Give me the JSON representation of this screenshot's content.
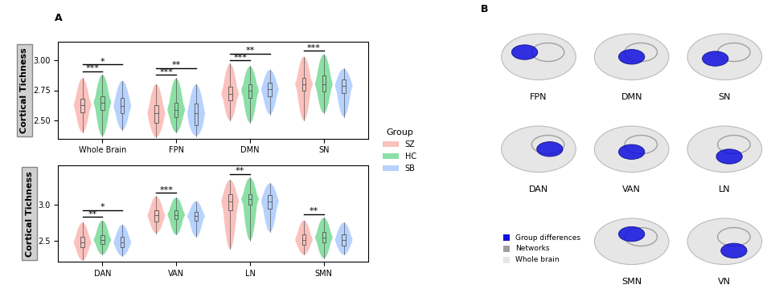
{
  "panel_labels": [
    "A",
    "B"
  ],
  "chart_data": [
    {
      "type": "violin",
      "ylabel": "Cortical Tichness",
      "categories": [
        "Whole Brain",
        "FPN",
        "DMN",
        "SN"
      ],
      "ylim": [
        2.35,
        3.15
      ],
      "yticks": [
        {
          "value": 2.5,
          "label": "2.50"
        },
        {
          "value": 2.75,
          "label": "2.75"
        },
        {
          "value": 3.0,
          "label": "3.00"
        }
      ],
      "grid": false,
      "legend": "center left",
      "legend_title": "Group",
      "series": [
        {
          "name": "SZ",
          "color": "#F8766D",
          "values": [
            {
              "min": 2.4,
              "q1": 2.57,
              "median": 2.63,
              "q3": 2.68,
              "max": 2.85
            },
            {
              "min": 2.36,
              "q1": 2.48,
              "median": 2.56,
              "q3": 2.63,
              "max": 2.8
            },
            {
              "min": 2.5,
              "q1": 2.67,
              "median": 2.72,
              "q3": 2.78,
              "max": 2.97
            },
            {
              "min": 2.5,
              "q1": 2.75,
              "median": 2.8,
              "q3": 2.85,
              "max": 3.03
            }
          ]
        },
        {
          "name": "HC",
          "color": "#00BA38",
          "values": [
            {
              "min": 2.37,
              "q1": 2.59,
              "median": 2.65,
              "q3": 2.7,
              "max": 2.88
            },
            {
              "min": 2.4,
              "q1": 2.53,
              "median": 2.59,
              "q3": 2.65,
              "max": 2.85
            },
            {
              "min": 2.48,
              "q1": 2.69,
              "median": 2.75,
              "q3": 2.8,
              "max": 2.95
            },
            {
              "min": 2.56,
              "q1": 2.74,
              "median": 2.8,
              "q3": 2.87,
              "max": 3.05
            }
          ]
        },
        {
          "name": "SB",
          "color": "#619CFF",
          "values": [
            {
              "min": 2.42,
              "q1": 2.56,
              "median": 2.62,
              "q3": 2.69,
              "max": 2.83
            },
            {
              "min": 2.37,
              "q1": 2.46,
              "median": 2.56,
              "q3": 2.64,
              "max": 2.8
            },
            {
              "min": 2.55,
              "q1": 2.7,
              "median": 2.76,
              "q3": 2.81,
              "max": 2.92
            },
            {
              "min": 2.53,
              "q1": 2.73,
              "median": 2.79,
              "q3": 2.84,
              "max": 2.93
            }
          ]
        }
      ],
      "comparisons": [
        {
          "category": "Whole Brain",
          "groups": [
            "SZ",
            "HC"
          ],
          "label": "***"
        },
        {
          "category": "Whole Brain",
          "groups": [
            "SZ",
            "SB"
          ],
          "label": "*"
        },
        {
          "category": "FPN",
          "groups": [
            "SZ",
            "HC"
          ],
          "label": "***"
        },
        {
          "category": "FPN",
          "groups": [
            "SZ",
            "SB"
          ],
          "label": "**"
        },
        {
          "category": "DMN",
          "groups": [
            "SZ",
            "HC"
          ],
          "label": "***"
        },
        {
          "category": "DMN",
          "groups": [
            "SZ",
            "SB"
          ],
          "label": "**"
        },
        {
          "category": "SN",
          "groups": [
            "SZ",
            "HC"
          ],
          "label": "***"
        }
      ]
    },
    {
      "type": "violin",
      "ylabel": "Cortical Tichness",
      "categories": [
        "DAN",
        "VAN",
        "LN",
        "SMN"
      ],
      "ylim": [
        2.2,
        3.55
      ],
      "yticks": [
        {
          "value": 2.5,
          "label": "2.5"
        },
        {
          "value": 3.0,
          "label": "3.0"
        }
      ],
      "grid": false,
      "series": [
        {
          "name": "SZ",
          "color": "#F8766D",
          "values": [
            {
              "min": 2.22,
              "q1": 2.4,
              "median": 2.47,
              "q3": 2.55,
              "max": 2.75
            },
            {
              "min": 2.6,
              "q1": 2.77,
              "median": 2.85,
              "q3": 2.92,
              "max": 3.12
            },
            {
              "min": 2.38,
              "q1": 2.92,
              "median": 3.05,
              "q3": 3.15,
              "max": 3.35
            },
            {
              "min": 2.3,
              "q1": 2.44,
              "median": 2.51,
              "q3": 2.58,
              "max": 2.78
            }
          ]
        },
        {
          "name": "HC",
          "color": "#00BA38",
          "values": [
            {
              "min": 2.3,
              "q1": 2.45,
              "median": 2.51,
              "q3": 2.57,
              "max": 2.78
            },
            {
              "min": 2.58,
              "q1": 2.8,
              "median": 2.86,
              "q3": 2.92,
              "max": 3.1
            },
            {
              "min": 2.5,
              "q1": 3.0,
              "median": 3.08,
              "q3": 3.15,
              "max": 3.38
            },
            {
              "min": 2.25,
              "q1": 2.47,
              "median": 2.54,
              "q3": 2.62,
              "max": 2.82
            }
          ]
        },
        {
          "name": "SB",
          "color": "#619CFF",
          "values": [
            {
              "min": 2.28,
              "q1": 2.4,
              "median": 2.47,
              "q3": 2.55,
              "max": 2.72
            },
            {
              "min": 2.55,
              "q1": 2.78,
              "median": 2.84,
              "q3": 2.9,
              "max": 3.05
            },
            {
              "min": 2.62,
              "q1": 2.95,
              "median": 3.05,
              "q3": 3.14,
              "max": 3.3
            },
            {
              "min": 2.3,
              "q1": 2.43,
              "median": 2.51,
              "q3": 2.59,
              "max": 2.75
            }
          ]
        }
      ],
      "comparisons": [
        {
          "category": "DAN",
          "groups": [
            "SZ",
            "HC"
          ],
          "label": "**"
        },
        {
          "category": "DAN",
          "groups": [
            "SZ",
            "SB"
          ],
          "label": "*"
        },
        {
          "category": "VAN",
          "groups": [
            "SZ",
            "HC"
          ],
          "label": "***"
        },
        {
          "category": "LN",
          "groups": [
            "SZ",
            "HC"
          ],
          "label": "**"
        },
        {
          "category": "SMN",
          "groups": [
            "SZ",
            "HC"
          ],
          "label": "**"
        }
      ]
    }
  ],
  "panel_b": {
    "networks": [
      "FPN",
      "DMN",
      "SN",
      "DAN",
      "VAN",
      "LN",
      "SMN",
      "VN"
    ],
    "key_items": [
      {
        "label": "Group differences",
        "color": "#1010E0"
      },
      {
        "label": "Networks",
        "color": "#A0A0A0"
      },
      {
        "label": "Whole brain",
        "color": "#E6E6E6"
      }
    ]
  }
}
